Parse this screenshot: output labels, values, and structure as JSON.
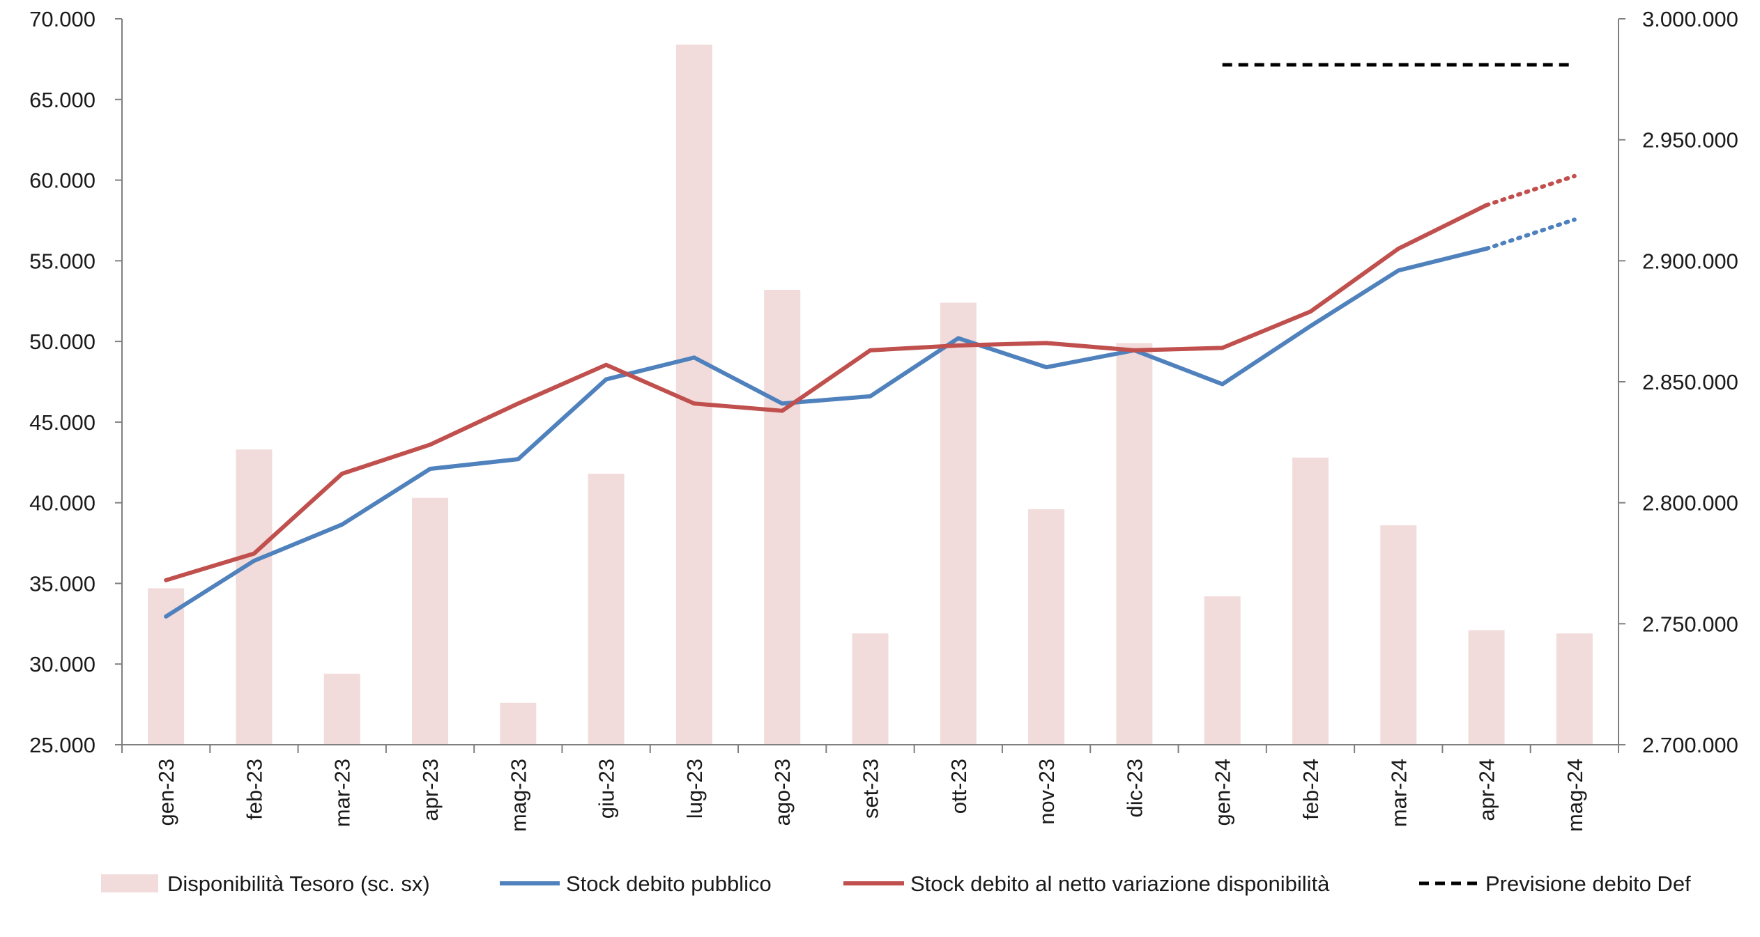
{
  "chart_data": {
    "type": "bar",
    "categories": [
      "gen-23",
      "feb-23",
      "mar-23",
      "apr-23",
      "mag-23",
      "giu-23",
      "lug-23",
      "ago-23",
      "set-23",
      "ott-23",
      "nov-23",
      "dic-23",
      "gen-24",
      "feb-24",
      "mar-24",
      "apr-24",
      "mag-24"
    ],
    "y_left": {
      "range": [
        25000,
        70000
      ],
      "ticks": [
        25000,
        30000,
        35000,
        40000,
        45000,
        50000,
        55000,
        60000,
        65000,
        70000
      ],
      "tick_labels": [
        "25.000",
        "30.000",
        "35.000",
        "40.000",
        "45.000",
        "50.000",
        "55.000",
        "60.000",
        "65.000",
        "70.000"
      ]
    },
    "y_right": {
      "range": [
        2700000,
        3000000
      ],
      "ticks": [
        2700000,
        2750000,
        2800000,
        2850000,
        2900000,
        2950000,
        3000000
      ],
      "tick_labels": [
        "2.700.000",
        "2.750.000",
        "2.800.000",
        "2.850.000",
        "2.900.000",
        "2.950.000",
        "3.000.000"
      ]
    },
    "series": [
      {
        "name": "Disponibilità Tesoro (sc. sx)",
        "kind": "bar",
        "axis": "left",
        "color": "#f2dcdb",
        "values": [
          34700,
          43300,
          29400,
          40300,
          27600,
          41800,
          68400,
          53200,
          31900,
          52400,
          39600,
          49900,
          34200,
          42800,
          38600,
          32100,
          31900
        ]
      },
      {
        "name": "Stock debito pubblico",
        "kind": "line",
        "axis": "right",
        "color": "#4f81bd",
        "values": [
          2753000,
          2776000,
          2791000,
          2814000,
          2818000,
          2851000,
          2860000,
          2841000,
          2844000,
          2868000,
          2856000,
          2863000,
          2849000,
          2873000,
          2896000,
          2905000,
          2917000
        ],
        "dotted_from_index": 15
      },
      {
        "name": "Stock debito al netto variazione disponibilità",
        "kind": "line",
        "axis": "right",
        "color": "#c0504d",
        "values": [
          2768000,
          2779000,
          2812000,
          2824000,
          2841000,
          2857000,
          2841000,
          2838000,
          2863000,
          2865000,
          2866000,
          2863000,
          2864000,
          2879000,
          2905000,
          2923000,
          2935000
        ],
        "dotted_from_index": 15
      },
      {
        "name": "Previsione debito Def",
        "kind": "line",
        "axis": "right",
        "color": "#000000",
        "dash": "dashed",
        "x_span": [
          "gen-24",
          "mag-24"
        ],
        "value": 2981000
      }
    ],
    "legend_position": "bottom",
    "grid": false
  }
}
